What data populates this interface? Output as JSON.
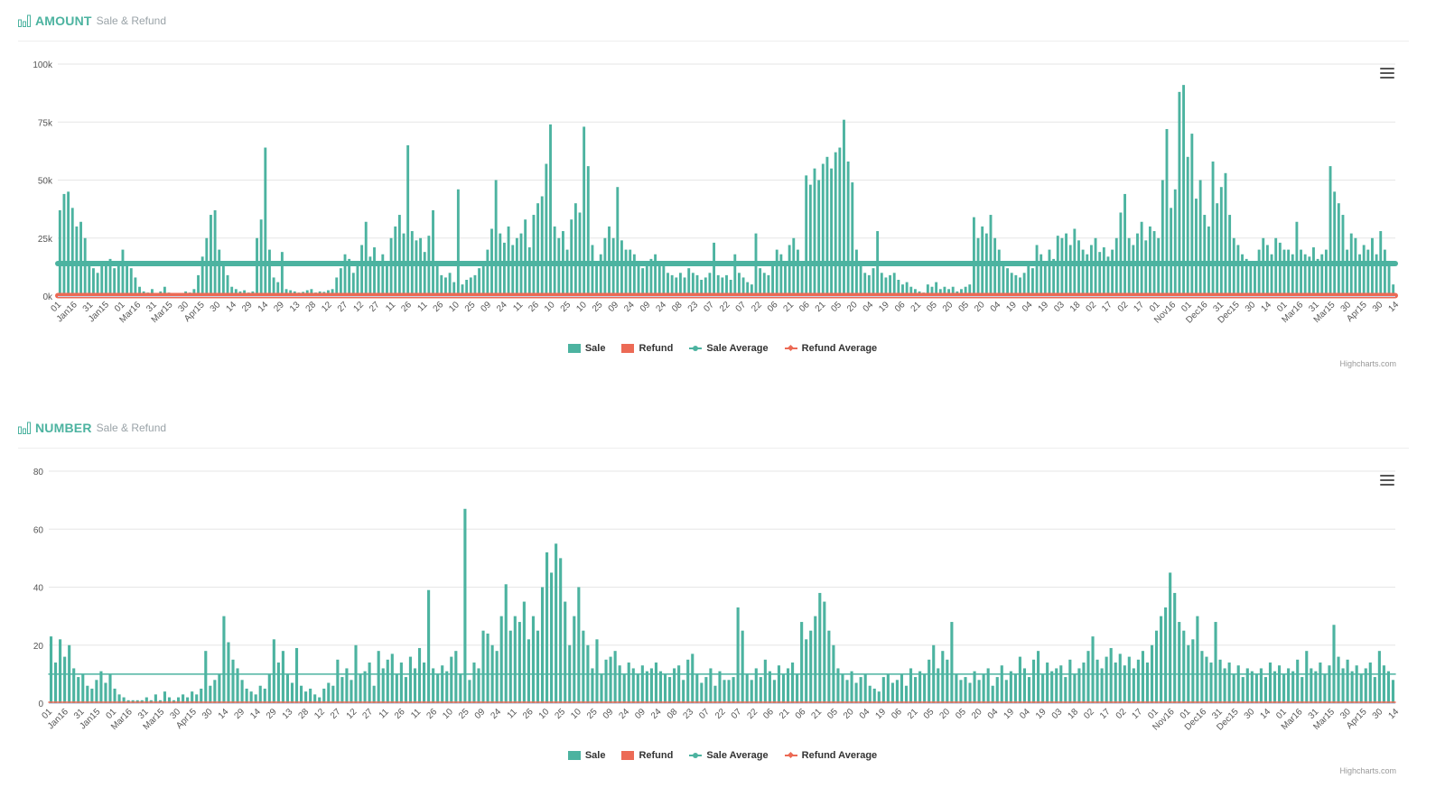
{
  "colors": {
    "sale": "#4cb3a0",
    "refund": "#ec6a55",
    "grid": "#e6e6e6",
    "accent": "#4cb3a0"
  },
  "legend": {
    "sale": "Sale",
    "refund": "Refund",
    "sale_avg": "Sale Average",
    "refund_avg": "Refund Average"
  },
  "credits": "Highcharts.com",
  "x_tick_labels": [
    "01",
    "Jan16",
    "31",
    "Jan15",
    "01",
    "Mar16",
    "31",
    "Mar15",
    "30",
    "Apr15",
    "30",
    "14",
    "29",
    "14",
    "29",
    "13",
    "28",
    "12",
    "27",
    "12",
    "27",
    "11",
    "26",
    "11",
    "26",
    "10",
    "25",
    "09",
    "24",
    "11",
    "26",
    "10",
    "25",
    "10",
    "25",
    "09",
    "24",
    "09",
    "24",
    "08",
    "23",
    "07",
    "22",
    "07",
    "22",
    "06",
    "21",
    "06",
    "21",
    "05",
    "20",
    "04",
    "19",
    "06",
    "21",
    "05",
    "20",
    "05",
    "20",
    "04",
    "19",
    "04",
    "19",
    "03",
    "18",
    "02",
    "17",
    "02",
    "17",
    "01",
    "Nov16",
    "01",
    "Dec16",
    "31",
    "Dec15",
    "30",
    "14",
    "01",
    "Mar16",
    "31",
    "Mar15",
    "30",
    "Apr15",
    "30",
    "14"
  ],
  "charts": {
    "amount": {
      "icon": "bar-chart-icon",
      "title": "AMOUNT",
      "subtitle": "Sale & Refund",
      "chart_data": {
        "type": "bar",
        "y_tick_labels": [
          "0k",
          "25k",
          "50k",
          "75k",
          "100k"
        ],
        "ylim": [
          0,
          100000
        ],
        "series": [
          {
            "name": "Sale",
            "type": "column",
            "values": [
              37000,
              44000,
              45000,
              38000,
              30000,
              32000,
              25000,
              15000,
              12000,
              10000,
              14000,
              13000,
              16000,
              12000,
              14000,
              20000,
              15000,
              12000,
              8000,
              4000,
              2000,
              1500,
              3000,
              1000,
              2000,
              4000,
              1500,
              1000,
              800,
              1200,
              2000,
              1500,
              3000,
              9000,
              17000,
              25000,
              35000,
              37000,
              20000,
              15000,
              9000,
              4000,
              3000,
              2000,
              2500,
              1500,
              2000,
              25000,
              33000,
              64000,
              20000,
              8000,
              6000,
              19000,
              3000,
              2500,
              2000,
              1500,
              1800,
              2500,
              3000,
              1500,
              2000,
              1800,
              2500,
              3000,
              8000,
              12000,
              18000,
              16000,
              10000,
              14000,
              22000,
              32000,
              17000,
              21000,
              15000,
              18000,
              13000,
              25000,
              30000,
              35000,
              27000,
              65000,
              28000,
              24000,
              25000,
              19000,
              26000,
              37000,
              15000,
              9000,
              8000,
              10000,
              6000,
              46000,
              5000,
              7000,
              8000,
              9000,
              12000,
              14000,
              20000,
              29000,
              50000,
              27000,
              23000,
              30000,
              22000,
              25000,
              27000,
              33000,
              21000,
              35000,
              40000,
              43000,
              57000,
              74000,
              30000,
              25000,
              28000,
              20000,
              33000,
              40000,
              36000,
              73000,
              56000,
              22000,
              15000,
              18000,
              25000,
              30000,
              25000,
              47000,
              24000,
              20000,
              20000,
              18000,
              15000,
              12000,
              14000,
              16000,
              18000,
              15000,
              13000,
              10000,
              9000,
              8000,
              10000,
              8000,
              12000,
              10000,
              9000,
              7000,
              8000,
              10000,
              23000,
              9000,
              8000,
              9000,
              7000,
              18000,
              10000,
              8000,
              6000,
              5000,
              27000,
              12000,
              10000,
              9000,
              15000,
              20000,
              18000,
              15000,
              22000,
              25000,
              20000,
              15000,
              52000,
              48000,
              55000,
              50000,
              57000,
              60000,
              55000,
              62000,
              64000,
              76000,
              58000,
              49000,
              20000,
              15000,
              10000,
              9000,
              12000,
              28000,
              10000,
              8000,
              9000,
              10000,
              7000,
              5000,
              6000,
              4000,
              3000,
              2000,
              1500,
              5000,
              4000,
              6000,
              3000,
              4000,
              3000,
              4000,
              2000,
              3000,
              4000,
              5000,
              34000,
              25000,
              30000,
              27000,
              35000,
              25000,
              20000,
              15000,
              12000,
              10000,
              9000,
              8000,
              10000,
              14000,
              12000,
              22000,
              18000,
              15000,
              20000,
              16000,
              26000,
              25000,
              27000,
              22000,
              29000,
              24000,
              20000,
              18000,
              22000,
              25000,
              19000,
              21000,
              17000,
              20000,
              25000,
              36000,
              44000,
              25000,
              22000,
              27000,
              32000,
              24000,
              30000,
              28000,
              25000,
              50000,
              72000,
              38000,
              46000,
              88000,
              91000,
              60000,
              70000,
              42000,
              50000,
              35000,
              30000,
              58000,
              40000,
              47000,
              53000,
              35000,
              25000,
              22000,
              18000,
              16000,
              15000,
              14000,
              20000,
              25000,
              22000,
              18000,
              25000,
              23000,
              20000,
              20000,
              18000,
              32000,
              20000,
              18000,
              17000,
              21000,
              16000,
              18000,
              20000,
              56000,
              45000,
              40000,
              35000,
              20000,
              27000,
              25000,
              18000,
              22000,
              20000,
              25000,
              18000,
              28000,
              20000,
              15000,
              5000
            ]
          },
          {
            "name": "Refund",
            "type": "column",
            "values": []
          },
          {
            "name": "Sale Average",
            "type": "line",
            "value": 14000
          },
          {
            "name": "Refund Average",
            "type": "line",
            "value": 200
          }
        ]
      }
    },
    "number": {
      "icon": "bar-chart-icon",
      "title": "NUMBER",
      "subtitle": "Sale & Refund",
      "chart_data": {
        "type": "bar",
        "y_tick_labels": [
          "0",
          "20",
          "40",
          "60",
          "80"
        ],
        "ylim": [
          0,
          80
        ],
        "series": [
          {
            "name": "Sale",
            "type": "column",
            "values": [
              23,
              14,
              22,
              16,
              20,
              12,
              9,
              10,
              6,
              5,
              8,
              11,
              7,
              10,
              5,
              3,
              2,
              1,
              1,
              1,
              1,
              2,
              1,
              3,
              1,
              4,
              2,
              1,
              2,
              3,
              2,
              4,
              3,
              5,
              18,
              6,
              8,
              10,
              30,
              21,
              15,
              12,
              8,
              5,
              4,
              3,
              6,
              5,
              10,
              22,
              14,
              18,
              10,
              7,
              19,
              6,
              4,
              5,
              3,
              2,
              5,
              7,
              6,
              15,
              9,
              12,
              8,
              20,
              10,
              11,
              14,
              6,
              18,
              12,
              15,
              17,
              10,
              14,
              9,
              16,
              12,
              19,
              14,
              39,
              12,
              10,
              13,
              11,
              16,
              18,
              10,
              67,
              8,
              14,
              12,
              25,
              24,
              20,
              18,
              30,
              41,
              25,
              30,
              28,
              35,
              22,
              30,
              25,
              40,
              52,
              45,
              55,
              50,
              35,
              20,
              30,
              40,
              25,
              20,
              12,
              22,
              10,
              15,
              16,
              18,
              13,
              10,
              14,
              12,
              10,
              13,
              11,
              12,
              14,
              11,
              10,
              9,
              12,
              13,
              8,
              15,
              17,
              10,
              7,
              9,
              12,
              6,
              11,
              8,
              8,
              9,
              33,
              25,
              10,
              8,
              12,
              9,
              15,
              11,
              8,
              13,
              10,
              12,
              14,
              10,
              28,
              22,
              25,
              30,
              38,
              35,
              25,
              20,
              12,
              10,
              8,
              11,
              7,
              9,
              10,
              6,
              5,
              4,
              9,
              10,
              7,
              8,
              10,
              6,
              12,
              9,
              11,
              10,
              15,
              20,
              12,
              18,
              15,
              28,
              10,
              8,
              9,
              7,
              11,
              8,
              10,
              12,
              6,
              9,
              13,
              8,
              11,
              10,
              16,
              12,
              9,
              15,
              18,
              10,
              14,
              11,
              12,
              13,
              9,
              15,
              10,
              12,
              14,
              18,
              23,
              15,
              12,
              16,
              19,
              14,
              17,
              13,
              16,
              12,
              15,
              18,
              14,
              20,
              25,
              30,
              33,
              45,
              38,
              28,
              25,
              20,
              22,
              30,
              18,
              16,
              14,
              28,
              15,
              12,
              14,
              10,
              13,
              9,
              12,
              11,
              10,
              12,
              9,
              14,
              11,
              13,
              10,
              12,
              11,
              15,
              9,
              18,
              12,
              11,
              14,
              10,
              13,
              27,
              16,
              12,
              15,
              11,
              13,
              10,
              12,
              14,
              9,
              18,
              13,
              11,
              8
            ]
          },
          {
            "name": "Refund",
            "type": "column",
            "values": []
          },
          {
            "name": "Sale Average",
            "type": "line",
            "value": 10
          },
          {
            "name": "Refund Average",
            "type": "line",
            "value": 0
          }
        ]
      }
    }
  }
}
